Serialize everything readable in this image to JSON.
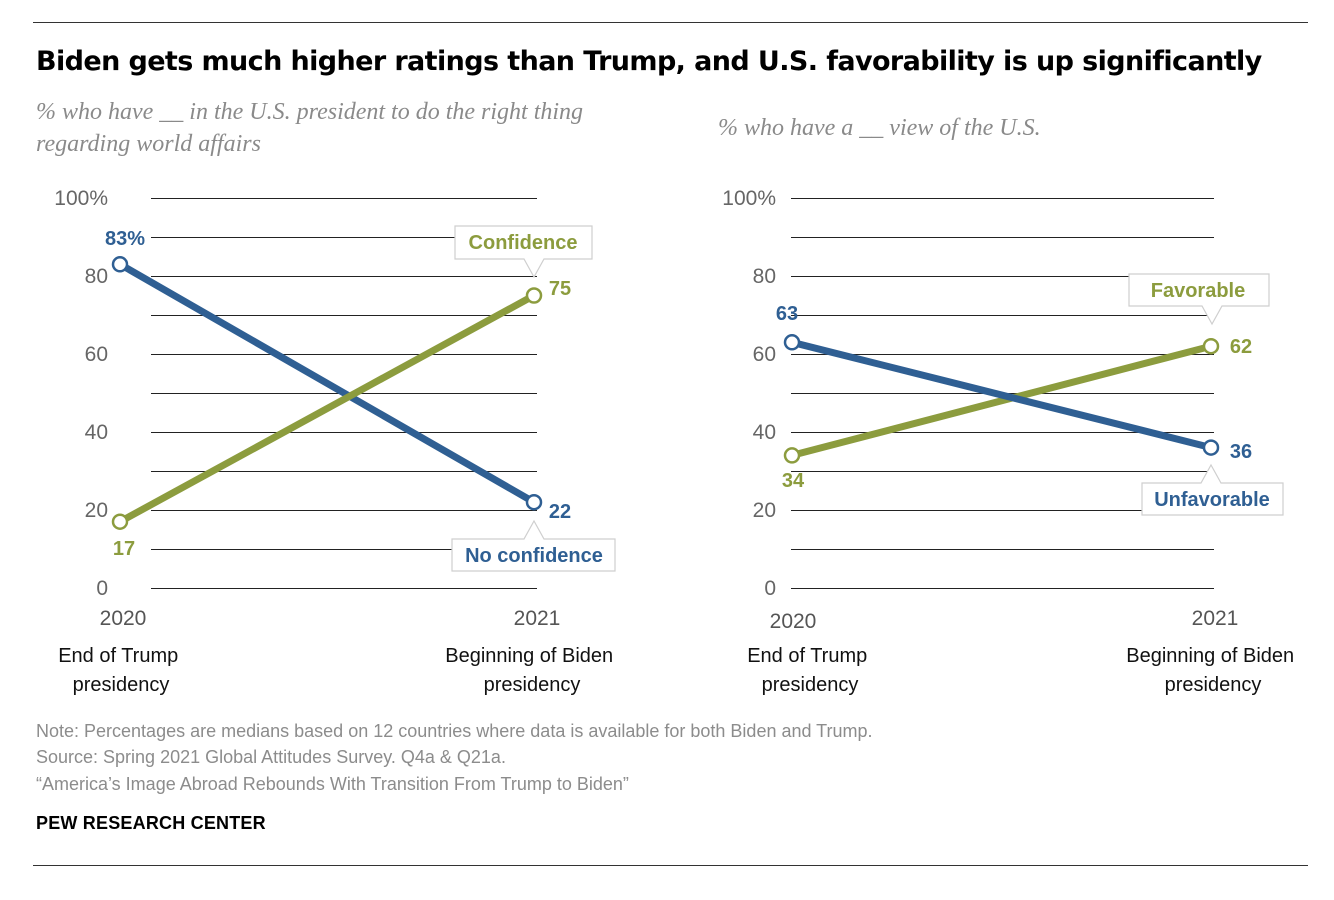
{
  "title": "Biden gets much higher ratings than Trump, and U.S. favorability is up significantly",
  "colors": {
    "blue": "#2f5f93",
    "green": "#8c9c3e",
    "grid": "#222222"
  },
  "footer": {
    "note": "Note: Percentages are medians based on 12 countries where data is available for both Biden and Trump.",
    "source": "Source: Spring 2021 Global Attitudes Survey. Q4a & Q21a.",
    "report": "“America’s Image Abroad Rebounds With Transition From Trump to Biden”",
    "brand": "PEW RESEARCH CENTER"
  },
  "chart_data": [
    {
      "type": "line",
      "subtitle": "% who have __ in the U.S. president to do the right thing regarding world affairs",
      "x": [
        "2020",
        "2021"
      ],
      "x_descriptions": [
        "End of Trump presidency",
        "Beginning of Biden presidency"
      ],
      "y_ticks": [
        "100%",
        "80",
        "60",
        "40",
        "20",
        "0"
      ],
      "ylim": [
        0,
        100
      ],
      "series": [
        {
          "name": "No confidence",
          "color": "#2f5f93",
          "values": [
            83,
            22
          ],
          "labels": [
            "83%",
            "22"
          ]
        },
        {
          "name": "Confidence",
          "color": "#8c9c3e",
          "values": [
            17,
            75
          ],
          "labels": [
            "17",
            "75"
          ]
        }
      ]
    },
    {
      "type": "line",
      "subtitle": "% who have a __ view of the U.S.",
      "x": [
        "2020",
        "2021"
      ],
      "x_descriptions": [
        "End of Trump presidency",
        "Beginning of Biden presidency"
      ],
      "y_ticks": [
        "100%",
        "80",
        "60",
        "40",
        "20",
        "0"
      ],
      "ylim": [
        0,
        100
      ],
      "series": [
        {
          "name": "Unfavorable",
          "color": "#2f5f93",
          "values": [
            63,
            36
          ],
          "labels": [
            "63",
            "36"
          ]
        },
        {
          "name": "Favorable",
          "color": "#8c9c3e",
          "values": [
            34,
            62
          ],
          "labels": [
            "34",
            "62"
          ]
        }
      ]
    }
  ]
}
